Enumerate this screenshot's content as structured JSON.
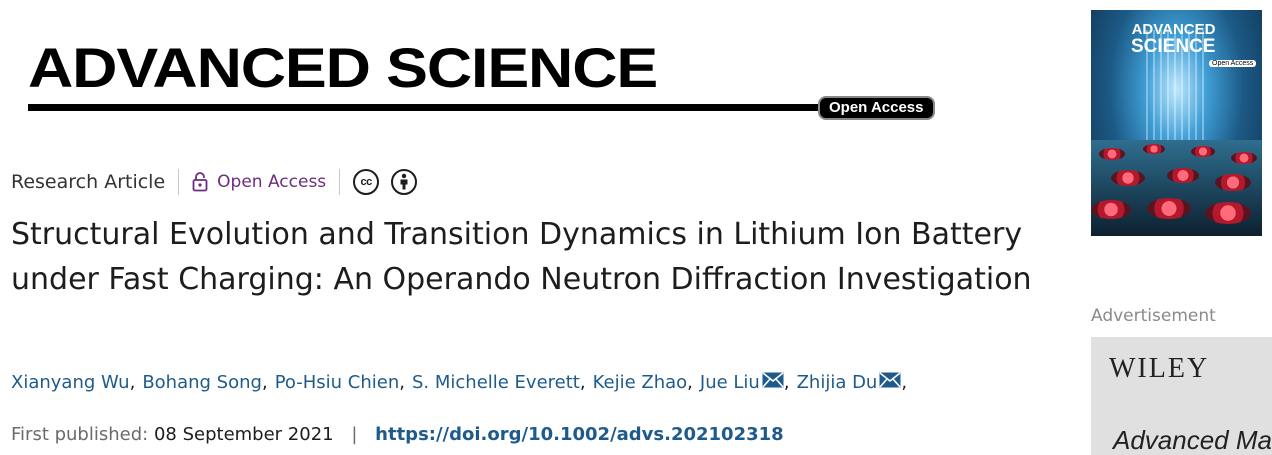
{
  "banner": {
    "title": "ADVANCED SCIENCE",
    "badge": "Open Access"
  },
  "meta": {
    "article_type": "Research Article",
    "access": "Open Access",
    "cc_icon_text": "cc",
    "icons": [
      "lock-icon",
      "cc-license-icon",
      "attribution-icon"
    ]
  },
  "title": "Structural Evolution and Transition Dynamics in Lithium Ion Battery under Fast Charging: An Operando Neutron Diffraction Investigation",
  "authors": [
    {
      "name": "Xianyang Wu",
      "corresponding": false
    },
    {
      "name": "Bohang Song",
      "corresponding": false
    },
    {
      "name": "Po-Hsiu Chien",
      "corresponding": false
    },
    {
      "name": "S. Michelle Everett",
      "corresponding": false
    },
    {
      "name": "Kejie Zhao",
      "corresponding": false
    },
    {
      "name": "Jue Liu",
      "corresponding": true
    },
    {
      "name": "Zhijia Du",
      "corresponding": true
    }
  ],
  "published": {
    "label": "First published:",
    "date": "08 September 2021",
    "separator": "|",
    "doi": "https://doi.org/10.1002/advs.202102318"
  },
  "cover": {
    "title_line1": "ADVANCED",
    "title_line2": "SCIENCE",
    "badge": "Open Access"
  },
  "ad": {
    "label": "Advertisement",
    "brand": "WILEY",
    "journal": "Advanced Ma"
  },
  "colors": {
    "link": "#1e5b8c",
    "open_access": "#6b2d7e",
    "text": "#1c1d1e",
    "muted": "#6b6b6b"
  }
}
